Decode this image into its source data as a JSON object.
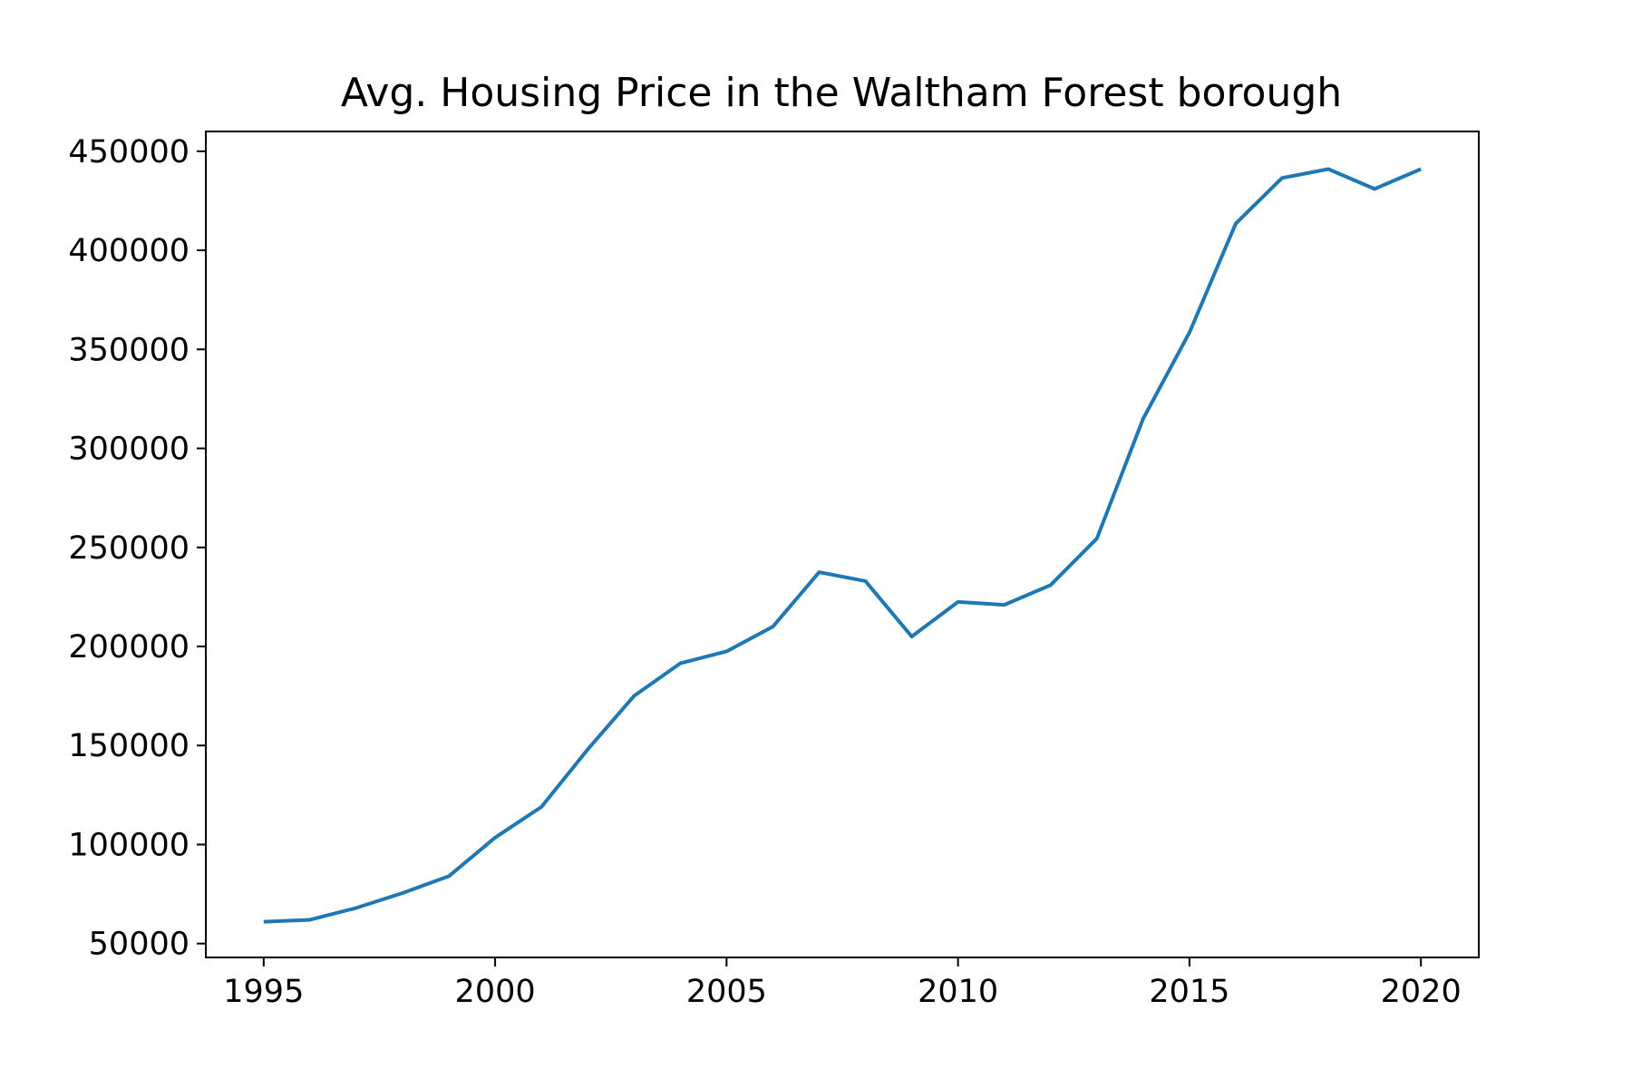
{
  "chart_data": {
    "type": "line",
    "title": "Avg. Housing Price in the Waltham Forest borough",
    "xlabel": "",
    "ylabel": "",
    "x": [
      1995,
      1996,
      1997,
      1998,
      1999,
      2000,
      2001,
      2002,
      2003,
      2004,
      2005,
      2006,
      2007,
      2008,
      2009,
      2010,
      2011,
      2012,
      2013,
      2014,
      2015,
      2016,
      2017,
      2018,
      2019,
      2020
    ],
    "series": [
      {
        "values": [
          61000,
          62000,
          68000,
          75500,
          84000,
          103500,
          119000,
          148000,
          175000,
          191500,
          197500,
          210000,
          237500,
          233000,
          205000,
          222500,
          221000,
          231000,
          254500,
          315000,
          358500,
          413500,
          436500,
          441000,
          431000,
          441000
        ],
        "color": "#1f77b4"
      }
    ],
    "xlim": [
      1993.75,
      2021.25
    ],
    "ylim": [
      43000,
      460000
    ],
    "xticks": [
      "1995",
      "2000",
      "2005",
      "2010",
      "2015",
      "2020"
    ],
    "yticks": [
      "50000",
      "100000",
      "150000",
      "200000",
      "250000",
      "300000",
      "350000",
      "400000",
      "450000"
    ],
    "grid": false,
    "legend": "none"
  }
}
